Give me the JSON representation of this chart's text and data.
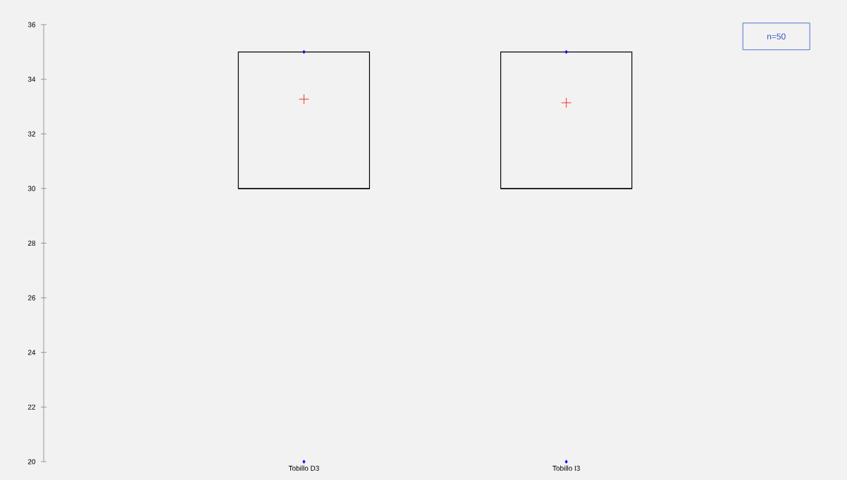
{
  "chart_data": {
    "type": "box",
    "categories": [
      "Tobillo D3",
      "Tobillo I3"
    ],
    "boxes": [
      {
        "low": 30,
        "q1": 30,
        "median": 30,
        "q3": 35,
        "high": 35,
        "mean": 33.27,
        "outliers": [
          20,
          35
        ]
      },
      {
        "low": 30,
        "q1": 30,
        "median": 30,
        "q3": 35,
        "high": 35,
        "mean": 33.14,
        "outliers": [
          20,
          35
        ]
      }
    ],
    "ylim": [
      20,
      36
    ],
    "yticks": [
      20,
      22,
      24,
      26,
      28,
      30,
      32,
      34,
      36
    ],
    "annotations": [
      "n=50"
    ],
    "grid": false,
    "legend": false
  }
}
